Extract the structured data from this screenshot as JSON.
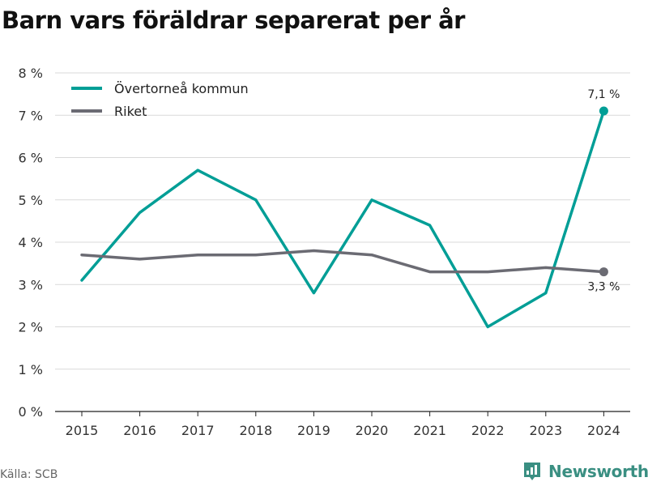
{
  "title": "Barn vars föräldrar separerat per år",
  "source": "Källa: SCB",
  "brand": "Newsworthy",
  "colors": {
    "series_1": "#009e96",
    "series_2": "#6b6b73",
    "grid": "#d9d9d9",
    "brand": "#3a8f82"
  },
  "chart_data": {
    "type": "line",
    "x": [
      "2015",
      "2016",
      "2017",
      "2018",
      "2019",
      "2020",
      "2021",
      "2022",
      "2023",
      "2024"
    ],
    "ylim": [
      0,
      8
    ],
    "y_ticks": [
      "0 %",
      "1 %",
      "2 %",
      "3 %",
      "4 %",
      "5 %",
      "6 %",
      "7 %",
      "8 %"
    ],
    "grid": true,
    "legend_position": "top-left",
    "series": [
      {
        "name": "Övertorneå kommun",
        "values": [
          3.1,
          4.7,
          5.7,
          5.0,
          2.8,
          5.0,
          4.4,
          2.0,
          2.8,
          7.1
        ],
        "end_label": "7,1 %"
      },
      {
        "name": "Riket",
        "values": [
          3.7,
          3.6,
          3.7,
          3.7,
          3.8,
          3.7,
          3.3,
          3.3,
          3.4,
          3.3
        ],
        "end_label": "3,3 %"
      }
    ]
  }
}
